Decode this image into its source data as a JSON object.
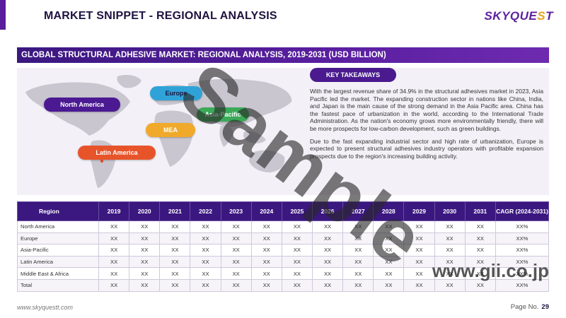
{
  "header": {
    "title": "MARKET SNIPPET - REGIONAL ANALYSIS",
    "logo_main": "SKYQUE",
    "logo_s": "S",
    "logo_t": "T"
  },
  "banner": {
    "title": "GLOBAL STRUCTURAL ADHESIVE MARKET: REGIONAL ANALYSIS, 2019-2031 (USD BILLION)"
  },
  "map_labels": {
    "north_america": "North America",
    "europe": "Europe",
    "asia_pacific": "Asia-Pacific",
    "mea": "MEA",
    "latin_america": "Latin America"
  },
  "key_takeaways": {
    "heading": "KEY TAKEAWAYS",
    "paragraph_1": "With the largest revenue share of 34.9% in the structural adhesives market in 2023, Asia Pacific led the market. The expanding construction sector in nations like China, India, and Japan is the main cause of the strong demand in the Asia Pacific area. China has the fastest pace of urbanization in the world, according to the International Trade Administration. As the nation's economy grows more environmentally friendly, there will be more prospects for low-carbon development, such as green buildings.",
    "paragraph_2": "Due to the fast expanding industrial sector and high rate of urbanization, Europe is expected to present structural adhesives industry operators with profitable expansion prospects due to the region's increasing building activity."
  },
  "table": {
    "headers": [
      "Region",
      "2019",
      "2020",
      "2021",
      "2022",
      "2023",
      "2024",
      "2025",
      "2026",
      "2027",
      "2028",
      "2029",
      "2030",
      "2031",
      "CAGR (2024-2031)"
    ],
    "rows": [
      [
        "North America",
        "XX",
        "XX",
        "XX",
        "XX",
        "XX",
        "XX",
        "XX",
        "XX",
        "XX",
        "XX",
        "XX",
        "XX",
        "XX",
        "XX%"
      ],
      [
        "Europe",
        "XX",
        "XX",
        "XX",
        "XX",
        "XX",
        "XX",
        "XX",
        "XX",
        "XX",
        "XX",
        "XX",
        "XX",
        "XX",
        "XX%"
      ],
      [
        "Asia-Pacific",
        "XX",
        "XX",
        "XX",
        "XX",
        "XX",
        "XX",
        "XX",
        "XX",
        "XX",
        "XX",
        "XX",
        "XX",
        "XX",
        "XX%"
      ],
      [
        "Latin America",
        "XX",
        "XX",
        "XX",
        "XX",
        "XX",
        "XX",
        "XX",
        "XX",
        "XX",
        "XX",
        "XX",
        "XX",
        "XX",
        "XX%"
      ],
      [
        "Middle East & Africa",
        "XX",
        "XX",
        "XX",
        "XX",
        "XX",
        "XX",
        "XX",
        "XX",
        "XX",
        "XX",
        "XX",
        "XX",
        "XX",
        "XX%"
      ],
      [
        "Total",
        "XX",
        "XX",
        "XX",
        "XX",
        "XX",
        "XX",
        "XX",
        "XX",
        "XX",
        "XX",
        "XX",
        "XX",
        "XX",
        "XX%"
      ]
    ]
  },
  "footer": {
    "url": "www.skyquestt.com",
    "page_label": "Page No.",
    "page_number": "29"
  },
  "watermarks": {
    "sample": "Sample",
    "gii": "www.gii.co.jp"
  },
  "colors": {
    "primary_purple": "#3b1780",
    "accent_orange": "#e8a21a",
    "north_america": "#4b1a92",
    "europe": "#2fa3d8",
    "asia_pacific": "#3aaa58",
    "mea": "#f0a92a",
    "latin_america": "#e8542a"
  }
}
